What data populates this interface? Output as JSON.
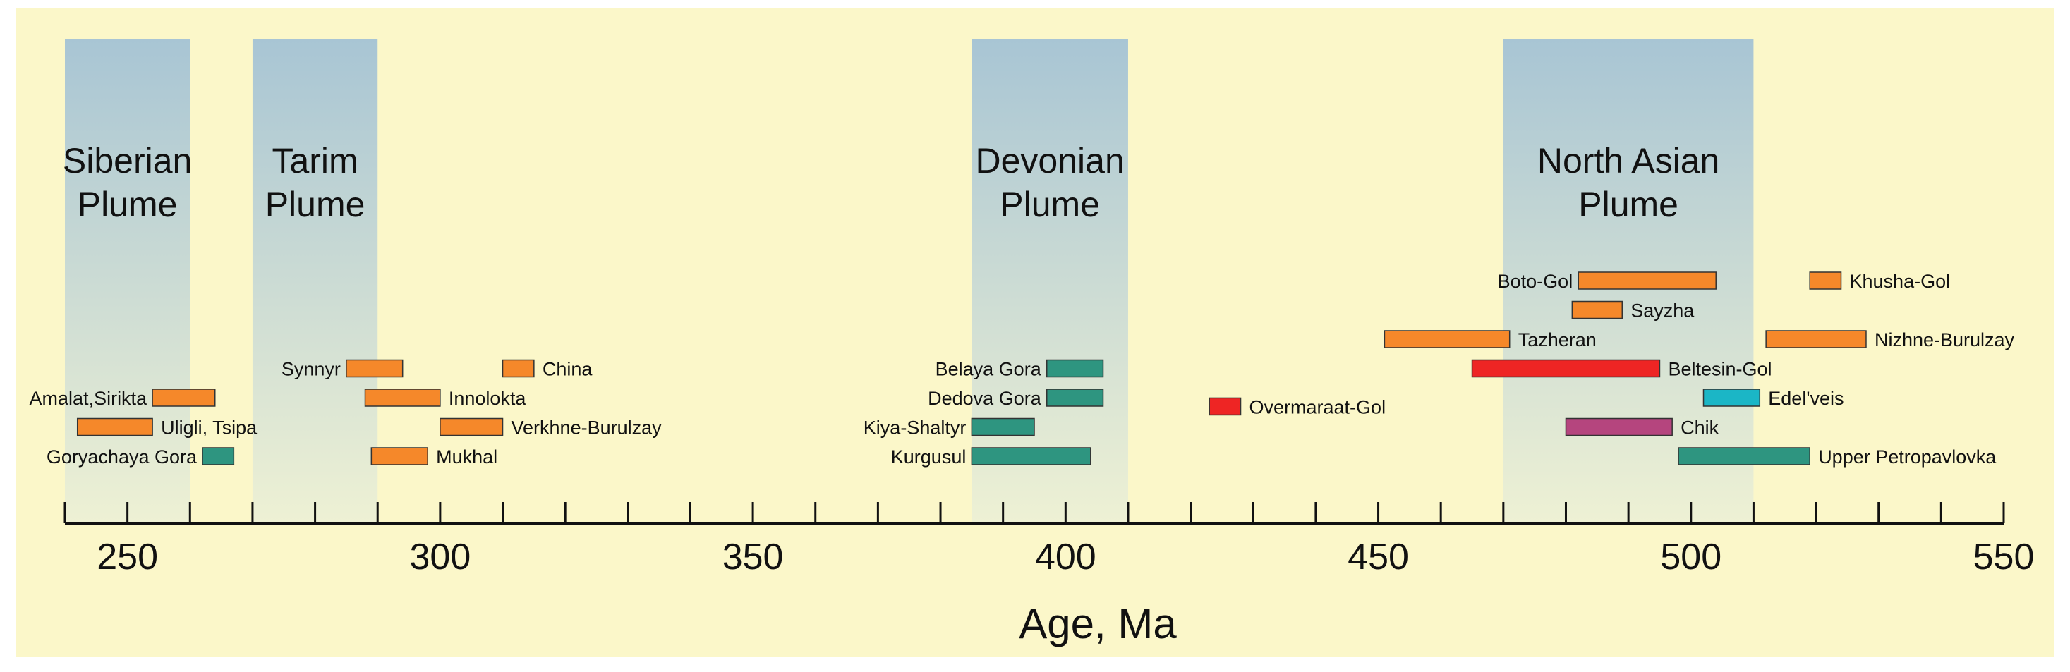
{
  "chart_data": {
    "type": "bar",
    "orientation": "horizontal-range",
    "xlabel": "Age, Ma",
    "xlim": [
      240,
      550
    ],
    "x_ticks": [
      250,
      300,
      350,
      400,
      450,
      500,
      550
    ],
    "x_minor_step": 10,
    "grid": false,
    "colors": {
      "background": "#fbf7c9",
      "plume_top": "#a8c5d4",
      "plume_bottom": "#eef1d4",
      "orange": "#f5882a",
      "teal": "#2e9580",
      "red": "#ee2524",
      "cyan": "#1bb6c6",
      "magenta": "#b5457e",
      "axis": "#111111"
    },
    "plumes": [
      {
        "name_lines": [
          "Siberian",
          "Plume"
        ],
        "range": [
          240,
          260
        ]
      },
      {
        "name_lines": [
          "Tarim",
          "Plume"
        ],
        "range": [
          270,
          290
        ]
      },
      {
        "name_lines": [
          "Devonian",
          "Plume"
        ],
        "range": [
          385,
          410
        ]
      },
      {
        "name_lines": [
          "North Asian",
          "Plume"
        ],
        "range": [
          470,
          510
        ]
      }
    ],
    "series": [
      {
        "label": "Amalat,Sirikta",
        "range": [
          254,
          264
        ],
        "color": "orange",
        "label_side": "left",
        "row": 7
      },
      {
        "label": "Uligli, Tsipa",
        "range": [
          242,
          254
        ],
        "color": "orange",
        "label_side": "right",
        "row": 8
      },
      {
        "label": "Goryachaya Gora",
        "range": [
          262,
          267
        ],
        "color": "teal",
        "label_side": "left",
        "row": 9
      },
      {
        "label": "Synnyr",
        "range": [
          285,
          294
        ],
        "color": "orange",
        "label_side": "left",
        "row": 6
      },
      {
        "label": "China",
        "range": [
          310,
          315
        ],
        "color": "orange",
        "label_side": "right",
        "row": 6
      },
      {
        "label": "Innolokta",
        "range": [
          288,
          300
        ],
        "color": "orange",
        "label_side": "right",
        "row": 7
      },
      {
        "label": "Verkhne-Burulzay",
        "range": [
          300,
          310
        ],
        "color": "orange",
        "label_side": "right",
        "row": 8
      },
      {
        "label": "Mukhal",
        "range": [
          289,
          298
        ],
        "color": "orange",
        "label_side": "right",
        "row": 9
      },
      {
        "label": "Belaya Gora",
        "range": [
          397,
          406
        ],
        "color": "teal",
        "label_side": "left",
        "row": 6
      },
      {
        "label": "Dedova Gora",
        "range": [
          397,
          406
        ],
        "color": "teal",
        "label_side": "left",
        "row": 7
      },
      {
        "label": "Kiya-Shaltyr",
        "range": [
          385,
          395
        ],
        "color": "teal",
        "label_side": "left",
        "row": 8
      },
      {
        "label": "Kurgusul",
        "range": [
          385,
          404
        ],
        "color": "teal",
        "label_side": "left",
        "row": 9
      },
      {
        "label": "Overmaraat-Gol",
        "range": [
          423,
          428
        ],
        "color": "red",
        "label_side": "right",
        "row": 7.3
      },
      {
        "label": "Boto-Gol",
        "range": [
          482,
          504
        ],
        "color": "orange",
        "label_side": "left",
        "row": 3
      },
      {
        "label": "Sayzha",
        "range": [
          481,
          489
        ],
        "color": "orange",
        "label_side": "right",
        "row": 4
      },
      {
        "label": "Khusha-Gol",
        "range": [
          519,
          524
        ],
        "color": "orange",
        "label_side": "right",
        "row": 3
      },
      {
        "label": "Tazheran",
        "range": [
          451,
          471
        ],
        "color": "orange",
        "label_side": "right",
        "row": 5
      },
      {
        "label": "Nizhne-Burulzay",
        "range": [
          512,
          528
        ],
        "color": "orange",
        "label_side": "right",
        "row": 5
      },
      {
        "label": "Beltesin-Gol",
        "range": [
          465,
          495
        ],
        "color": "red",
        "label_side": "right",
        "row": 6
      },
      {
        "label": "Edel'veis",
        "range": [
          502,
          511
        ],
        "color": "cyan",
        "label_side": "right",
        "row": 7
      },
      {
        "label": "Chik",
        "range": [
          480,
          497
        ],
        "color": "magenta",
        "label_side": "right",
        "row": 8
      },
      {
        "label": "Upper Petropavlovka",
        "range": [
          498,
          519
        ],
        "color": "teal",
        "label_side": "right",
        "row": 9
      }
    ]
  }
}
